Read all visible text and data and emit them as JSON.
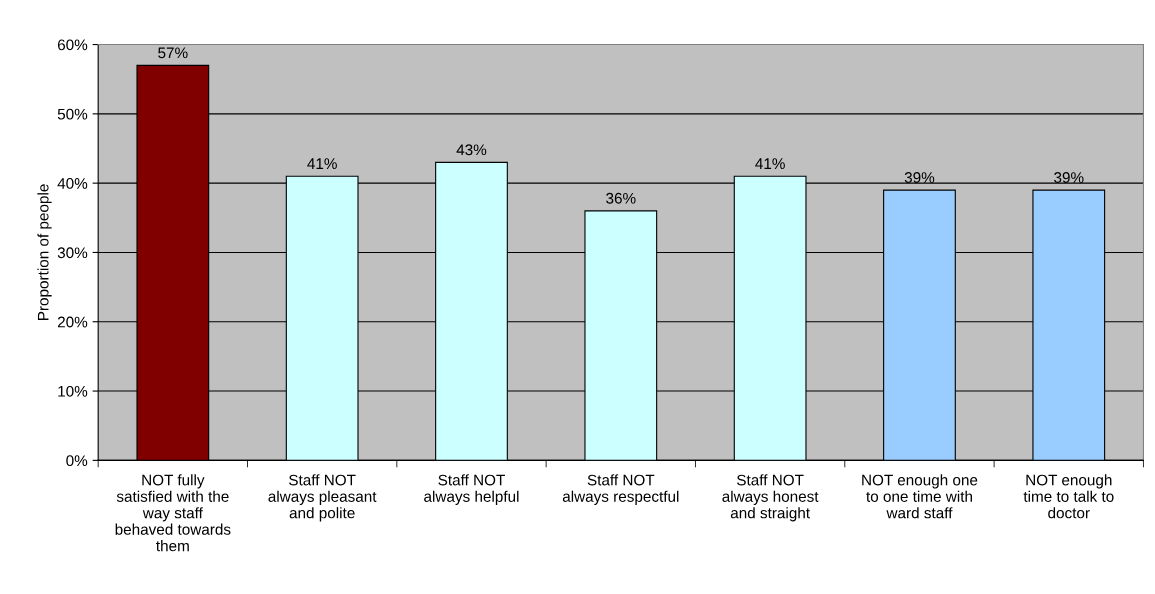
{
  "chart_data": {
    "type": "bar",
    "ylabel": "Proportion of people",
    "categories": [
      "NOT fully\nsatisfied with the\nway staff\nbehaved towards\nthem",
      "Staff NOT\nalways pleasant\nand polite",
      "Staff NOT\nalways helpful",
      "Staff NOT\nalways respectful",
      "Staff NOT\nalways honest\nand straight",
      "NOT enough one\nto one time with\nward staff",
      "NOT enough\ntime to talk to\ndoctor"
    ],
    "values": [
      57,
      41,
      43,
      36,
      41,
      39,
      39
    ],
    "colors": [
      "#800000",
      "#ccffff",
      "#ccffff",
      "#ccffff",
      "#ccffff",
      "#99ccff",
      "#99ccff"
    ],
    "value_labels": [
      "57%",
      "41%",
      "43%",
      "36%",
      "41%",
      "39%",
      "39%"
    ],
    "ylim": [
      0,
      60
    ],
    "yticks": [
      {
        "value": 0,
        "label": "0%"
      },
      {
        "value": 10,
        "label": "10%"
      },
      {
        "value": 20,
        "label": "20%"
      },
      {
        "value": 30,
        "label": "30%"
      },
      {
        "value": 40,
        "label": "40%"
      },
      {
        "value": 50,
        "label": "50%"
      },
      {
        "value": 60,
        "label": "60%"
      }
    ],
    "grid": "y"
  }
}
